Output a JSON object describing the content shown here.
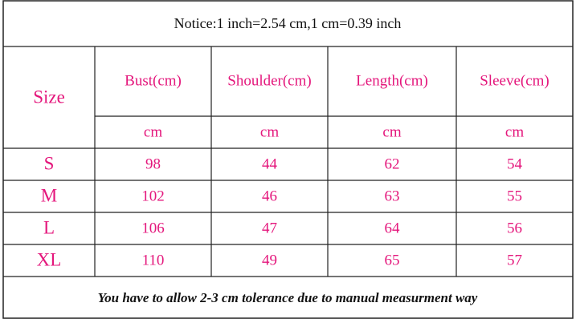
{
  "notice": "Notice:1 inch=2.54 cm,1 cm=0.39 inch",
  "table": {
    "header": [
      "Size",
      "Bust(cm)",
      "Shoulder(cm)",
      "Length(cm)",
      "Sleeve(cm)"
    ],
    "units": [
      "cm",
      "cm",
      "cm",
      "cm"
    ],
    "rows": [
      [
        "S",
        98,
        44,
        62,
        54
      ],
      [
        "M",
        102,
        46,
        63,
        55
      ],
      [
        "L",
        106,
        47,
        64,
        56
      ],
      [
        "XL",
        110,
        49,
        65,
        57
      ]
    ]
  },
  "footer": "You have to allow 2-3 cm tolerance due to manual measurment way"
}
